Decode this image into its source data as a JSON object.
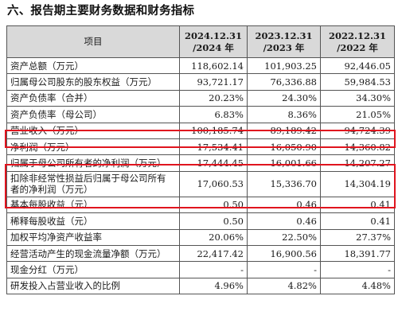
{
  "section_title": "六、报告期主要财务数据和财务指标",
  "table": {
    "header": {
      "item": "项目",
      "periods": [
        {
          "date": "2024.12.31",
          "year": "/2024 年"
        },
        {
          "date": "2023.12.31",
          "year": "/2023 年"
        },
        {
          "date": "2022.12.31",
          "year": "/2022 年"
        }
      ]
    },
    "rows": [
      {
        "label": "资产总额（万元）",
        "values": [
          "118,602.14",
          "101,903.25",
          "92,446.05"
        ],
        "highlighted": false
      },
      {
        "label": "归属母公司股东的股东权益（万元）",
        "values": [
          "93,721.17",
          "76,336.88",
          "59,984.53"
        ],
        "highlighted": false
      },
      {
        "label": "资产负债率（合并）",
        "values": [
          "20.23%",
          "24.30%",
          "34.30%"
        ],
        "highlighted": false
      },
      {
        "label": "资产负债率（母公司）",
        "values": [
          "6.83%",
          "8.36%",
          "21.05%"
        ],
        "highlighted": false
      },
      {
        "label": "营业收入（万元）",
        "values": [
          "100,185.74",
          "89,189.42",
          "94,724.39"
        ],
        "highlighted": true
      },
      {
        "label": "净利润（万元）",
        "values": [
          "17,534.41",
          "16,050.90",
          "14,360.82"
        ],
        "highlighted": false
      },
      {
        "label": "归属于母公司所有者的净利润（万元）",
        "values": [
          "17,444.45",
          "16,001.66",
          "14,207.27"
        ],
        "highlighted": true
      },
      {
        "label_line1": "扣除非经常性损益后归属于母公司所有",
        "label_line2": "者的净利润（万元）",
        "values": [
          "17,060.53",
          "15,336.70",
          "14,304.19"
        ],
        "highlighted": true
      },
      {
        "label": "基本每股收益（元）",
        "values": [
          "0.50",
          "0.46",
          "0.41"
        ],
        "highlighted": false
      },
      {
        "label": "稀释每股收益（元）",
        "values": [
          "0.50",
          "0.46",
          "0.41"
        ],
        "highlighted": false
      },
      {
        "label": "加权平均净资产收益率",
        "values": [
          "20.06%",
          "22.50%",
          "27.37%"
        ],
        "highlighted": false
      },
      {
        "label": "经营活动产生的现金流量净额（万元）",
        "values": [
          "22,417.42",
          "16,900.56",
          "18,391.77"
        ],
        "highlighted": false
      },
      {
        "label": "现金分红（万元）",
        "values": [
          "-",
          "-",
          "-"
        ],
        "highlighted": false
      },
      {
        "label": "研发投入占营业收入的比例",
        "values": [
          "4.96%",
          "4.82%",
          "4.48%"
        ],
        "highlighted": false
      }
    ]
  },
  "colors": {
    "header_bg": "#d9d9d9",
    "highlight_border": "#e0141e",
    "grid": "#555555"
  }
}
